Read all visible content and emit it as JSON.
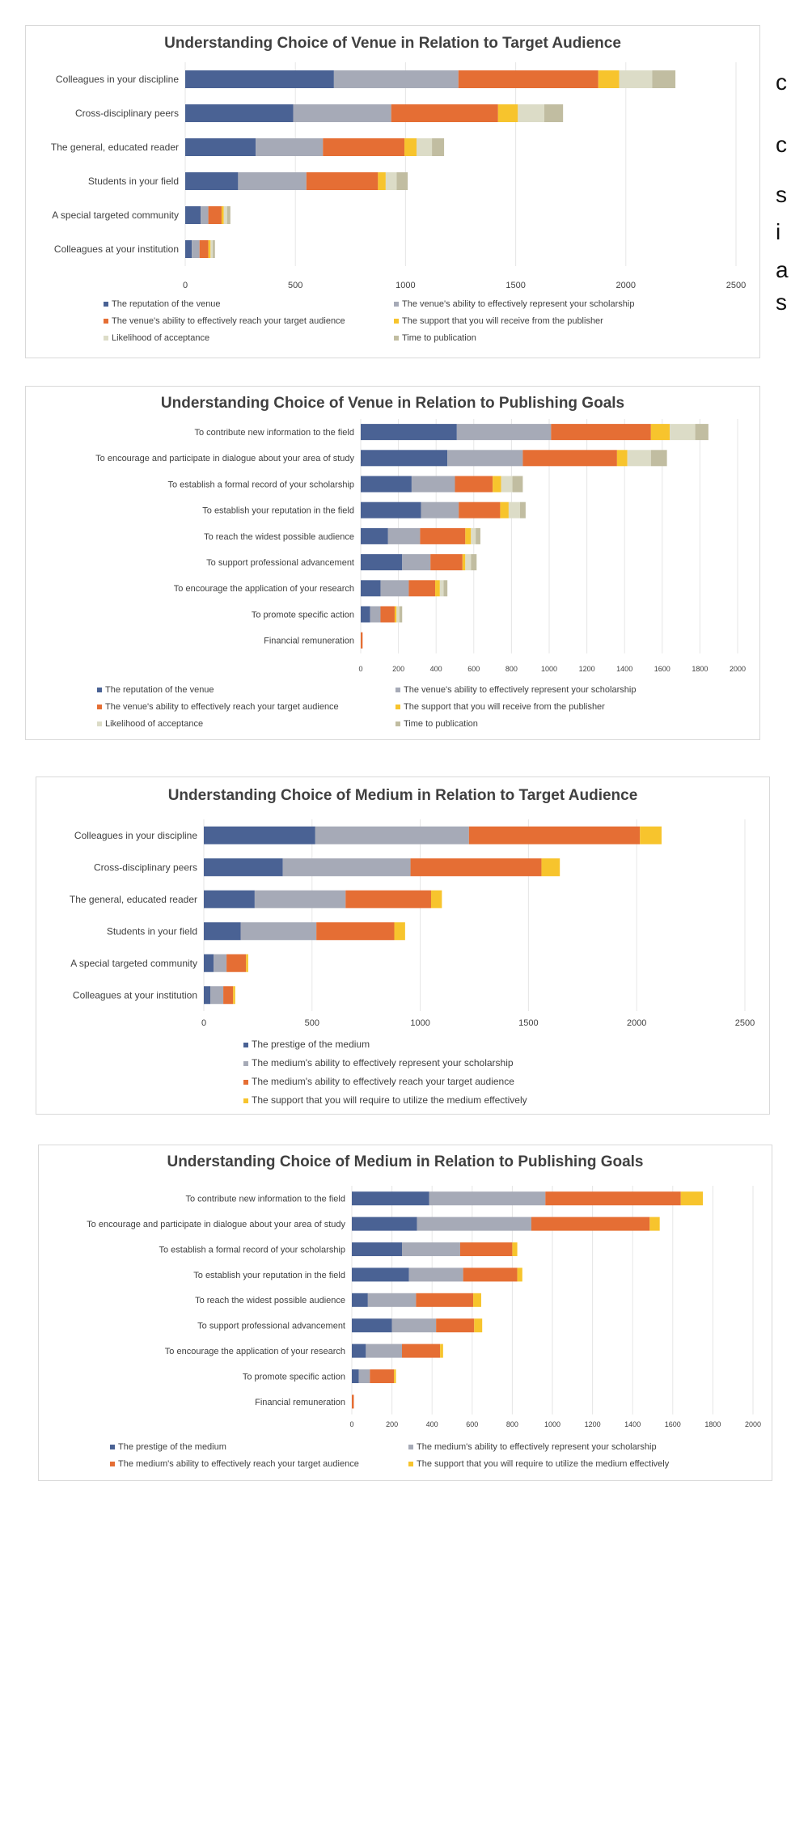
{
  "colors": {
    "dark_blue": "#4a6294",
    "gray": "#a6aab7",
    "orange": "#e56e34",
    "yellow": "#f7c42d",
    "light_beige": "#dcdcc7",
    "khaki": "#c1bda1",
    "grid": "#e6e6e6"
  },
  "side_letters": [
    "c",
    "c",
    "s",
    "i",
    "a",
    "s"
  ],
  "chart_data": [
    {
      "type": "bar",
      "orientation": "horizontal",
      "stacked": true,
      "title": "Understanding Choice of Venue in Relation to Target Audience",
      "categories": [
        "Colleagues in your discipline",
        "Cross-disciplinary peers",
        "The general, educated reader",
        "Students in your field",
        "A special targeted community",
        "Colleagues at your institution"
      ],
      "series": [
        {
          "name": "The reputation of the venue",
          "color": "#4a6294",
          "values": [
            675,
            490,
            320,
            240,
            70,
            30
          ]
        },
        {
          "name": "The venue's ability to effectively represent your scholarship",
          "color": "#a6aab7",
          "values": [
            565,
            445,
            305,
            310,
            35,
            35
          ]
        },
        {
          "name": "The venue's ability to effectively reach your target audience",
          "color": "#e56e34",
          "values": [
            635,
            485,
            370,
            325,
            60,
            40
          ]
        },
        {
          "name": "The support that you will receive from the publisher",
          "color": "#f7c42d",
          "values": [
            95,
            90,
            55,
            35,
            10,
            10
          ]
        },
        {
          "name": "Likelihood of acceptance",
          "color": "#dcdcc7",
          "values": [
            150,
            120,
            70,
            50,
            15,
            10
          ]
        },
        {
          "name": "Time to publication",
          "color": "#c1bda1",
          "values": [
            105,
            85,
            55,
            50,
            15,
            10
          ]
        }
      ],
      "xticks": [
        0,
        500,
        1000,
        1500,
        2000,
        2500
      ],
      "xlim": [
        0,
        2500
      ],
      "grid": true,
      "legend": "bottom"
    },
    {
      "type": "bar",
      "orientation": "horizontal",
      "stacked": true,
      "title": "Understanding Choice of Venue in Relation to Publishing Goals",
      "categories": [
        "To contribute new information to the field",
        "To encourage and participate in dialogue about your area of study",
        "To establish a formal record of your scholarship",
        "To establish your reputation in the field",
        "To reach the widest possible audience",
        "To support professional advancement",
        "To encourage the application of your research",
        "To promote specific action",
        "Financial remuneration"
      ],
      "series": [
        {
          "name": "The reputation of the venue",
          "color": "#4a6294",
          "values": [
            510,
            460,
            270,
            320,
            145,
            220,
            105,
            50,
            0
          ]
        },
        {
          "name": "The venue's ability to effectively represent your scholarship",
          "color": "#a6aab7",
          "values": [
            500,
            400,
            230,
            200,
            170,
            150,
            150,
            55,
            0
          ]
        },
        {
          "name": "The venue's ability to effectively reach your target audience",
          "color": "#e56e34",
          "values": [
            530,
            500,
            200,
            220,
            240,
            170,
            140,
            75,
            10
          ]
        },
        {
          "name": "The support that you will receive from the publisher",
          "color": "#f7c42d",
          "values": [
            100,
            55,
            45,
            45,
            30,
            15,
            25,
            10,
            0
          ]
        },
        {
          "name": "Likelihood of acceptance",
          "color": "#dcdcc7",
          "values": [
            135,
            125,
            60,
            60,
            25,
            30,
            20,
            15,
            0
          ]
        },
        {
          "name": "Time to publication",
          "color": "#c1bda1",
          "values": [
            70,
            85,
            55,
            30,
            25,
            30,
            20,
            15,
            0
          ]
        }
      ],
      "xticks": [
        0,
        200,
        400,
        600,
        800,
        1000,
        1200,
        1400,
        1600,
        1800,
        2000
      ],
      "xlim": [
        0,
        2000
      ],
      "grid": true,
      "legend": "bottom"
    },
    {
      "type": "bar",
      "orientation": "horizontal",
      "stacked": true,
      "title": "Understanding Choice of Medium in Relation to Target Audience",
      "categories": [
        "Colleagues in your discipline",
        "Cross-disciplinary peers",
        "The general, educated reader",
        "Students in your field",
        "A special targeted community",
        "Colleagues at your institution"
      ],
      "series": [
        {
          "name": "The prestige of the medium",
          "color": "#4a6294",
          "values": [
            515,
            365,
            235,
            170,
            45,
            30
          ]
        },
        {
          "name": "The medium's ability to effectively represent your scholarship",
          "color": "#a6aab7",
          "values": [
            710,
            590,
            420,
            350,
            60,
            60
          ]
        },
        {
          "name": "The medium's ability to effectively reach your target audience",
          "color": "#e56e34",
          "values": [
            790,
            605,
            395,
            360,
            90,
            45
          ]
        },
        {
          "name": "The support that you will require to utilize the medium effectively",
          "color": "#f7c42d",
          "values": [
            100,
            85,
            50,
            50,
            10,
            10
          ]
        }
      ],
      "xticks": [
        0,
        500,
        1000,
        1500,
        2000,
        2500
      ],
      "xlim": [
        0,
        2500
      ],
      "grid": true,
      "legend": "bottom"
    },
    {
      "type": "bar",
      "orientation": "horizontal",
      "stacked": true,
      "title": "Understanding Choice of Medium in Relation to Publishing Goals",
      "categories": [
        "To contribute new information to the field",
        "To encourage and participate in dialogue about your area of study",
        "To establish a formal record of your scholarship",
        "To establish your reputation in the field",
        "To reach the widest possible audience",
        "To support professional advancement",
        "To encourage the application of your research",
        "To promote specific action",
        "Financial remuneration"
      ],
      "series": [
        {
          "name": "The prestige of the medium",
          "color": "#4a6294",
          "values": [
            385,
            325,
            250,
            285,
            80,
            200,
            70,
            35,
            0
          ]
        },
        {
          "name": "The medium's ability to effectively represent your scholarship",
          "color": "#a6aab7",
          "values": [
            580,
            570,
            290,
            270,
            240,
            220,
            180,
            55,
            0
          ]
        },
        {
          "name": "The medium's ability to effectively reach your target audience",
          "color": "#e56e34",
          "values": [
            675,
            590,
            260,
            270,
            285,
            190,
            190,
            120,
            10
          ]
        },
        {
          "name": "The support that you will require to utilize the medium effectively",
          "color": "#f7c42d",
          "values": [
            110,
            50,
            25,
            25,
            40,
            40,
            15,
            10,
            0
          ]
        }
      ],
      "xticks": [
        0,
        200,
        400,
        600,
        800,
        1000,
        1200,
        1400,
        1600,
        1800,
        2000
      ],
      "xlim": [
        0,
        2000
      ],
      "grid": true,
      "legend": "bottom"
    }
  ]
}
